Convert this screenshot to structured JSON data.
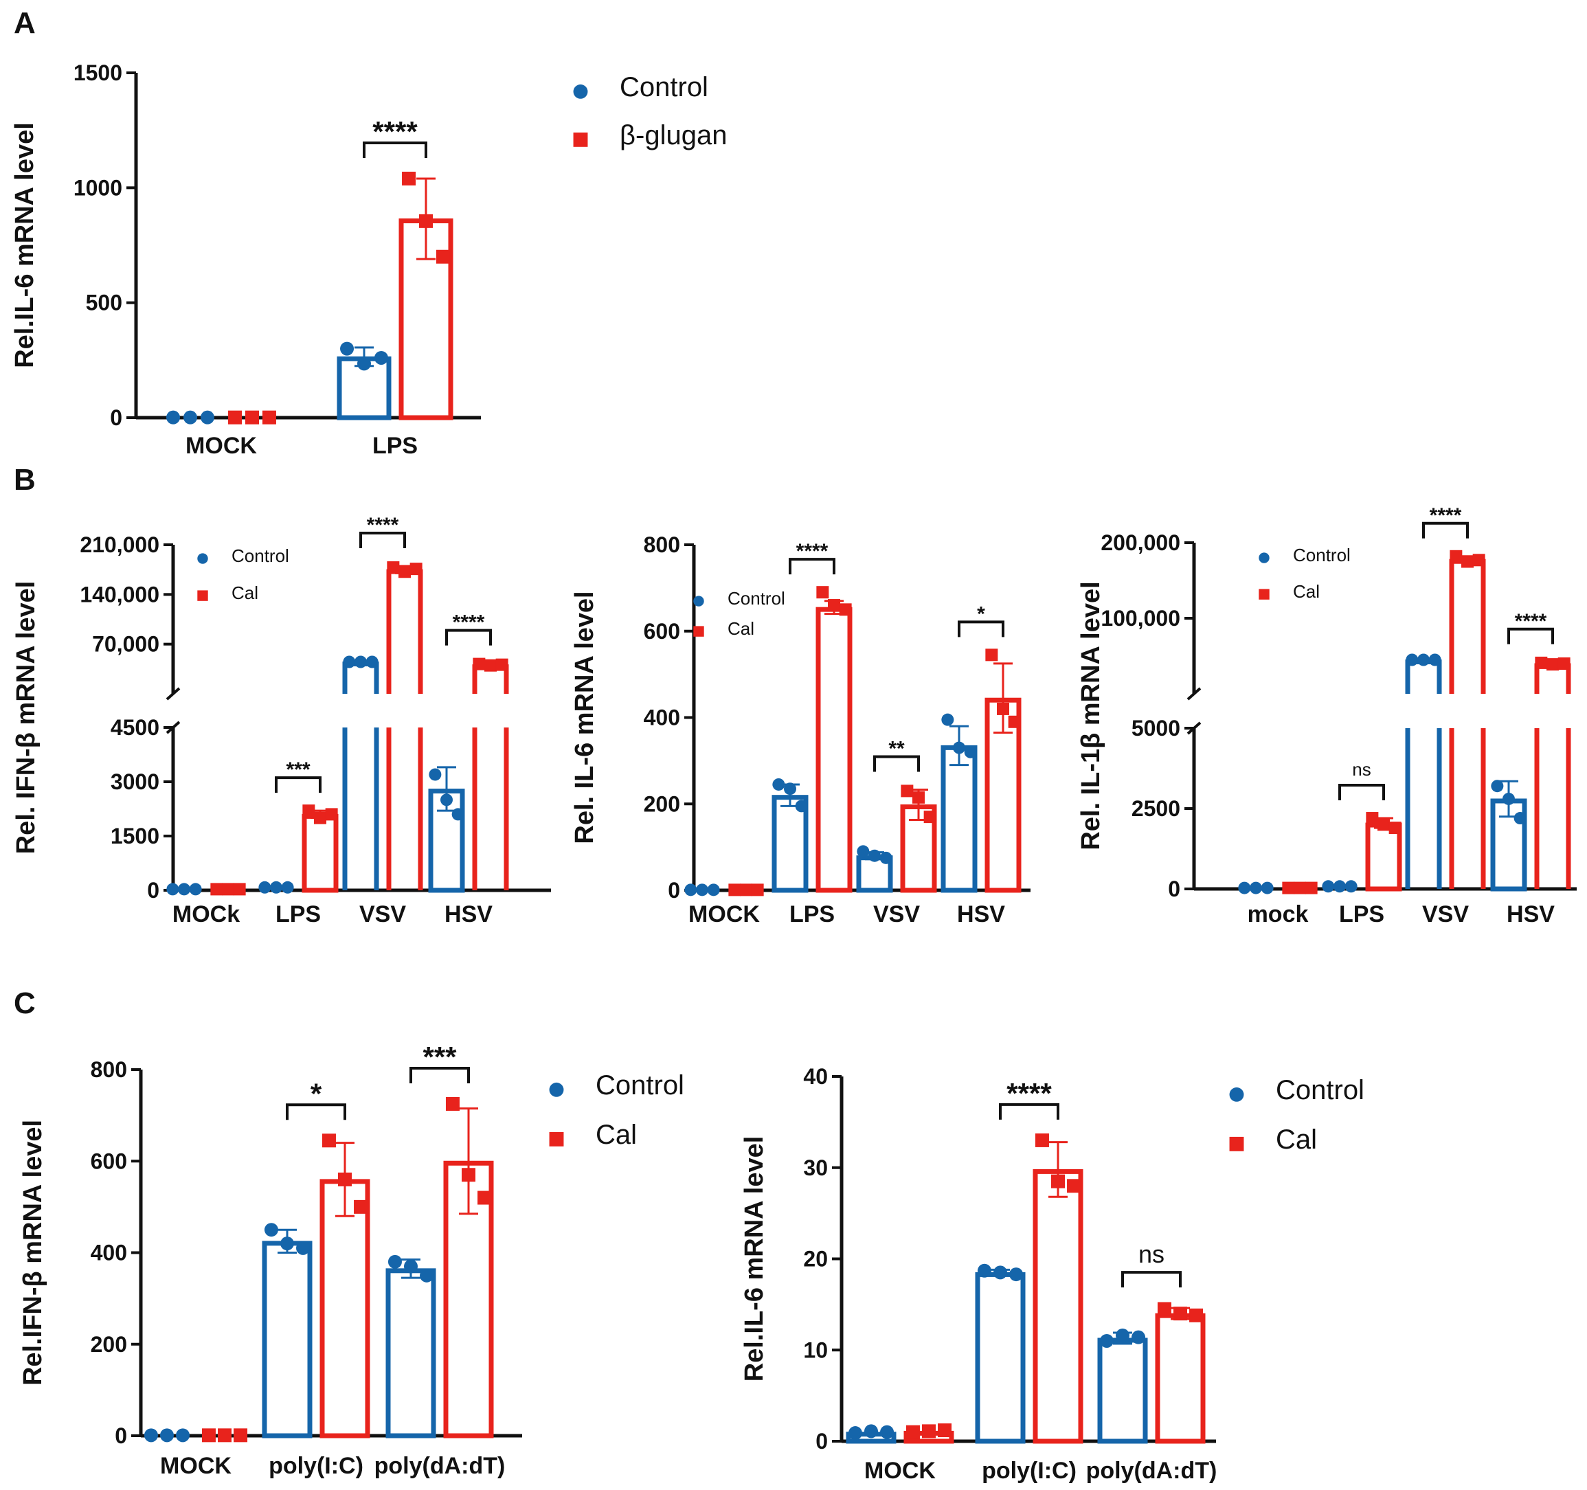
{
  "colors": {
    "control": "#1565AA",
    "treatment": "#E8231C",
    "axis": "#111111"
  },
  "chart_data": [
    {
      "id": "A",
      "panel_label": "A",
      "type": "bar",
      "ylabel": "Rel.IL-6 mRNA level",
      "ylim": [
        0,
        1500
      ],
      "yticks": [
        "0",
        "500",
        "1000",
        "1500"
      ],
      "categories": [
        "MOCK",
        "LPS"
      ],
      "legend": [
        "Control",
        "β-glugan"
      ],
      "series": [
        {
          "name": "Control",
          "values": [
            1,
            265
          ],
          "errors": [
            0,
            40
          ],
          "points": [
            [
              1,
              1,
              1
            ],
            [
              300,
              235,
              260
            ]
          ]
        },
        {
          "name": "β-glugan",
          "values": [
            1,
            865
          ],
          "errors": [
            0,
            175
          ],
          "points": [
            [
              1,
              1,
              1
            ],
            [
              1040,
              855,
              700
            ]
          ]
        }
      ],
      "significance": [
        {
          "category": "LPS",
          "label": "****"
        }
      ]
    },
    {
      "id": "B1",
      "panel_label": "B",
      "type": "bar",
      "ylabel": "Rel. IFN-β mRNA level",
      "ylim_lower": [
        0,
        4500
      ],
      "ylim_upper": [
        0,
        210000
      ],
      "axis_break": true,
      "yticks_lower": [
        "0",
        "1500",
        "3000",
        "4500"
      ],
      "yticks_upper": [
        "70,000",
        "140,000",
        "210,000"
      ],
      "categories": [
        "MOCk",
        "LPS",
        "VSV",
        "HSV"
      ],
      "legend": [
        "Control",
        "Cal"
      ],
      "series": [
        {
          "name": "Control",
          "values": [
            30,
            80,
            45000,
            2800
          ],
          "errors": [
            0,
            20,
            0,
            600
          ],
          "points": [
            [
              30,
              30,
              30
            ],
            [
              80,
              80,
              80
            ],
            [
              45000,
              45000,
              45000
            ],
            [
              3200,
              2500,
              2100
            ]
          ]
        },
        {
          "name": "Cal",
          "values": [
            30,
            2100,
            175000,
            41000
          ],
          "errors": [
            0,
            100,
            5000,
            2000
          ],
          "points": [
            [
              30,
              30,
              30
            ],
            [
              2200,
              2000,
              2100
            ],
            [
              178000,
              172000,
              176000
            ],
            [
              42000,
              40000,
              41000
            ]
          ]
        }
      ],
      "significance": [
        {
          "category": "LPS",
          "label": "***"
        },
        {
          "category": "VSV",
          "label": "****"
        },
        {
          "category": "HSV",
          "label": "****"
        }
      ]
    },
    {
      "id": "B2",
      "type": "bar",
      "ylabel": "Rel. IL-6 mRNA level",
      "ylim": [
        0,
        800
      ],
      "yticks": [
        "0",
        "200",
        "400",
        "600",
        "800"
      ],
      "categories": [
        "MOCK",
        "LPS",
        "VSV",
        "HSV"
      ],
      "legend": [
        "Control",
        "Cal"
      ],
      "series": [
        {
          "name": "Control",
          "values": [
            1,
            220,
            80,
            335
          ],
          "errors": [
            0,
            25,
            8,
            45
          ],
          "points": [
            [
              1,
              1,
              1
            ],
            [
              245,
              235,
              195
            ],
            [
              90,
              80,
              75
            ],
            [
              395,
              330,
              320
            ]
          ]
        },
        {
          "name": "Cal",
          "values": [
            1,
            655,
            198,
            445
          ],
          "errors": [
            0,
            15,
            35,
            80
          ],
          "points": [
            [
              1,
              1,
              1
            ],
            [
              690,
              660,
              650
            ],
            [
              230,
              215,
              170
            ],
            [
              545,
              420,
              390
            ]
          ]
        }
      ],
      "significance": [
        {
          "category": "LPS",
          "label": "****"
        },
        {
          "category": "VSV",
          "label": "**"
        },
        {
          "category": "HSV",
          "label": "*"
        }
      ]
    },
    {
      "id": "B3",
      "type": "bar",
      "ylabel": "Rel. IL-1β mRNA level",
      "ylim_lower": [
        0,
        5000
      ],
      "ylim_upper": [
        0,
        200000
      ],
      "axis_break": true,
      "yticks_lower": [
        "0",
        "2500",
        "5000"
      ],
      "yticks_upper": [
        "100,000",
        "200,000"
      ],
      "categories": [
        "mock",
        "LPS",
        "VSV",
        "HSV"
      ],
      "legend": [
        "Control",
        "Cal"
      ],
      "series": [
        {
          "name": "Control",
          "values": [
            30,
            80,
            45000,
            2800
          ],
          "errors": [
            0,
            20,
            0,
            550
          ],
          "points": [
            [
              30,
              30,
              30
            ],
            [
              80,
              80,
              80
            ],
            [
              45000,
              45000,
              45000
            ],
            [
              3200,
              2800,
              2200
            ]
          ]
        },
        {
          "name": "Cal",
          "values": [
            30,
            2050,
            178000,
            40000
          ],
          "errors": [
            0,
            150,
            4000,
            2000
          ],
          "points": [
            [
              30,
              30,
              30
            ],
            [
              2200,
              2000,
              1900
            ],
            [
              182000,
              175000,
              177000
            ],
            [
              41000,
              39000,
              40000
            ]
          ]
        }
      ],
      "significance": [
        {
          "category": "LPS",
          "label": "ns"
        },
        {
          "category": "VSV",
          "label": "****"
        },
        {
          "category": "HSV",
          "label": "****"
        }
      ]
    },
    {
      "id": "C1",
      "panel_label": "C",
      "type": "bar",
      "ylabel": "Rel.IFN-β mRNA level",
      "ylim": [
        0,
        800
      ],
      "yticks": [
        "0",
        "200",
        "400",
        "600",
        "800"
      ],
      "categories": [
        "MOCK",
        "poly(I:C)",
        "poly(dA:dT)"
      ],
      "legend": [
        "Control",
        "Cal"
      ],
      "series": [
        {
          "name": "Control",
          "values": [
            1,
            425,
            365
          ],
          "errors": [
            0,
            25,
            20
          ],
          "points": [
            [
              1,
              1,
              1
            ],
            [
              450,
              420,
              410
            ],
            [
              380,
              370,
              350
            ]
          ]
        },
        {
          "name": "Cal",
          "values": [
            1,
            560,
            600
          ],
          "errors": [
            0,
            80,
            115
          ],
          "points": [
            [
              1,
              1,
              1
            ],
            [
              645,
              560,
              500
            ],
            [
              725,
              570,
              520
            ]
          ]
        }
      ],
      "significance": [
        {
          "category": "poly(I:C)",
          "label": "*"
        },
        {
          "category": "poly(dA:dT)",
          "label": "***"
        }
      ]
    },
    {
      "id": "C2",
      "type": "bar",
      "ylabel": "Rel.IL-6 mRNA level",
      "ylim": [
        0,
        40
      ],
      "yticks": [
        "0",
        "10",
        "20",
        "30",
        "40"
      ],
      "categories": [
        "MOCK",
        "poly(I:C)",
        "poly(dA:dT)"
      ],
      "legend": [
        "Control",
        "Cal"
      ],
      "series": [
        {
          "name": "Control",
          "values": [
            1.0,
            18.5,
            11.3
          ],
          "errors": [
            0,
            0.3,
            0.6
          ],
          "points": [
            [
              0.9,
              1.1,
              1.0
            ],
            [
              18.7,
              18.5,
              18.3
            ],
            [
              11.0,
              11.6,
              11.4
            ]
          ]
        },
        {
          "name": "Cal",
          "values": [
            1.1,
            29.8,
            14.0
          ],
          "errors": [
            0,
            3.0,
            0.6
          ],
          "points": [
            [
              1.0,
              1.1,
              1.2
            ],
            [
              33.0,
              28.5,
              28.0
            ],
            [
              14.5,
              14.0,
              13.8
            ]
          ]
        }
      ],
      "significance": [
        {
          "category": "poly(I:C)",
          "label": "****"
        },
        {
          "category": "poly(dA:dT)",
          "label": "ns"
        }
      ]
    }
  ]
}
